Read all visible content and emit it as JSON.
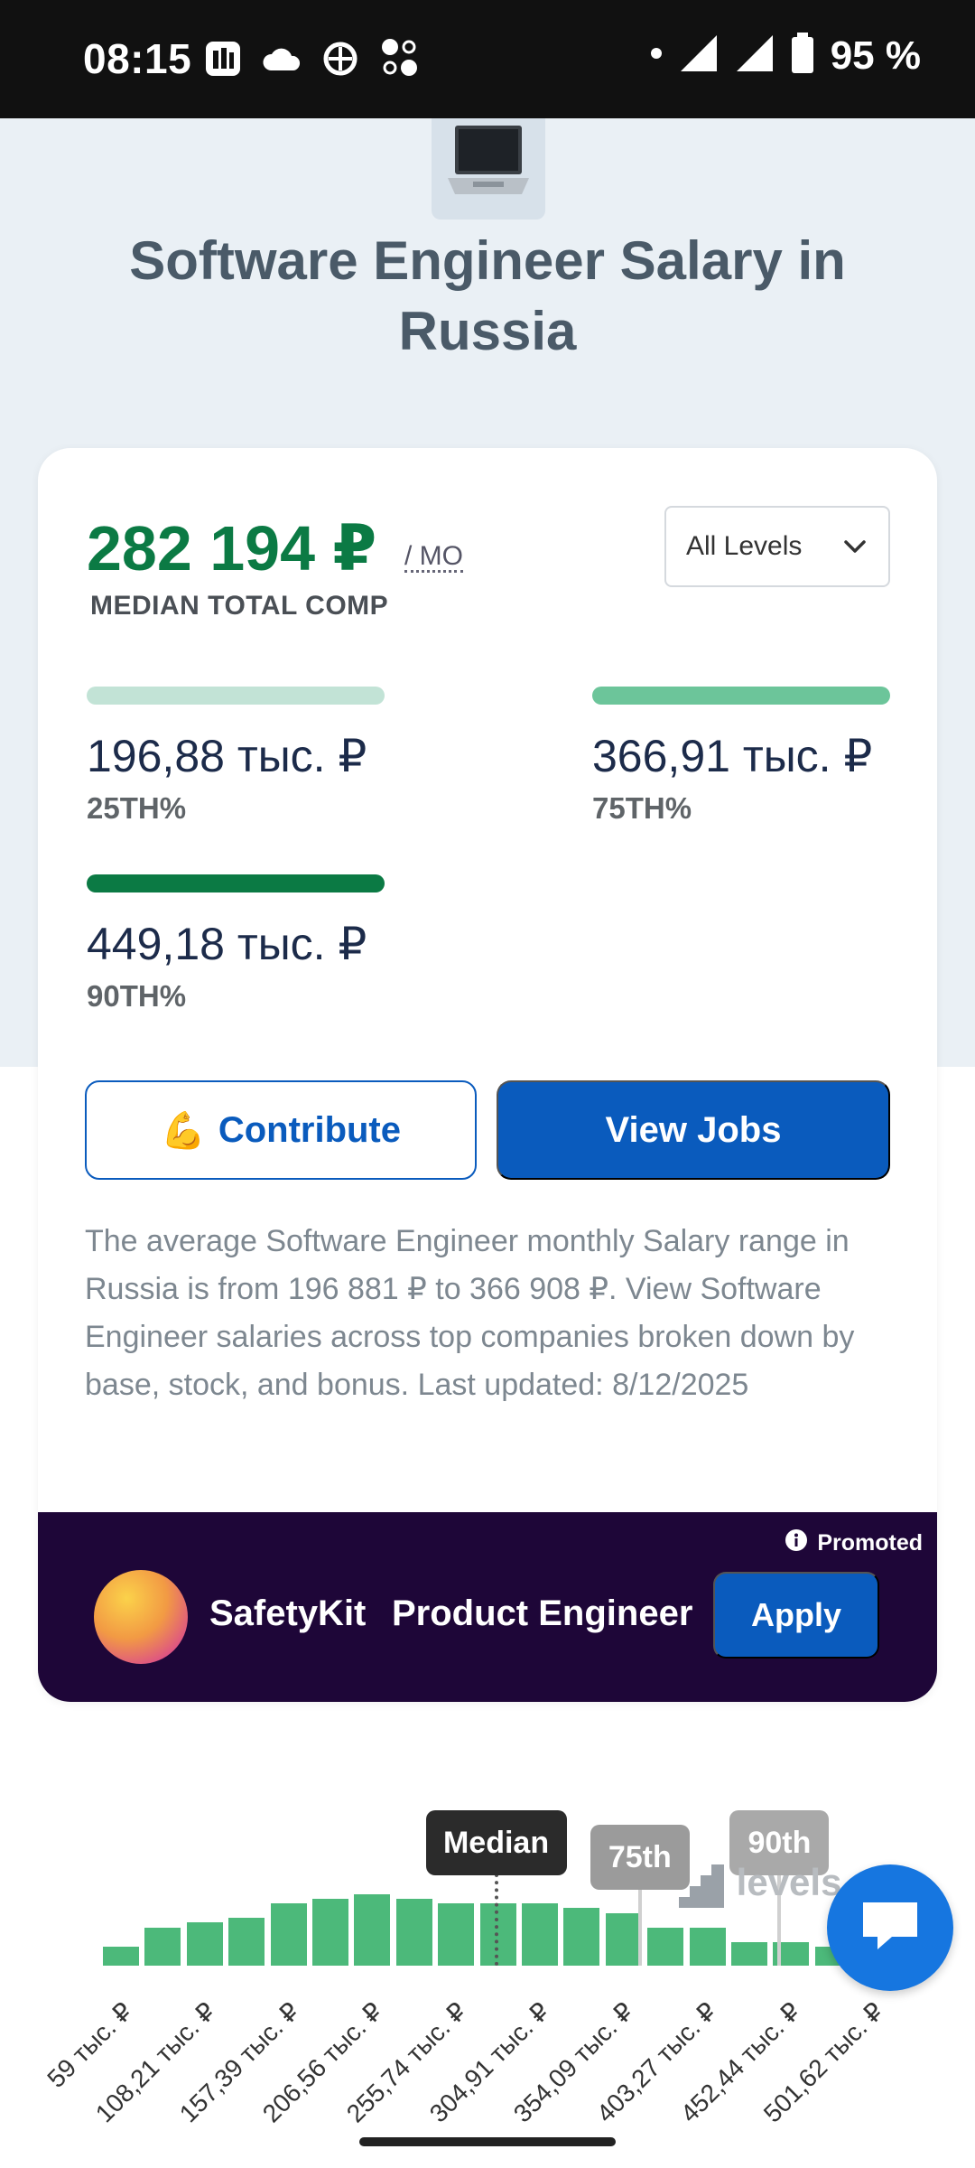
{
  "status_bar": {
    "time": "08:15",
    "battery": "95 %"
  },
  "hero": {
    "title": "Software Engineer Salary in Russia",
    "icon": "laptop-icon"
  },
  "summary": {
    "median_value": "282 194 ₽",
    "median_unit": "/ MO",
    "median_label": "MEDIAN TOTAL COMP",
    "level_select": "All Levels",
    "percentiles": [
      {
        "value": "196,88 тыс. ₽",
        "label": "25TH%",
        "color": "#c2e3d6"
      },
      {
        "value": "366,91 тыс. ₽",
        "label": "75TH%",
        "color": "#6cc59a"
      },
      {
        "value": "449,18 тыс. ₽",
        "label": "90TH%",
        "color": "#0b7a44"
      }
    ]
  },
  "actions": {
    "contribute_emoji": "💪",
    "contribute": "Contribute",
    "view_jobs": "View Jobs"
  },
  "description": "The average Software Engineer monthly Salary range in Russia is from 196 881 ₽ to 366 908 ₽. View Software Engineer salaries across top companies broken down by base, stock, and bonus. Last updated: 8/12/2025",
  "promo": {
    "tag": "Promoted",
    "company": "SafetyKit",
    "role": "Product Engineer",
    "apply": "Apply"
  },
  "histogram": {
    "markers": {
      "median": "Median",
      "p75": "75th",
      "p90": "90th"
    },
    "watermark": "levels",
    "bar_color": "#4cb97a"
  },
  "chart_data": {
    "type": "bar",
    "title": "",
    "xlabel": "",
    "ylabel": "",
    "tick_labels": [
      "59 тыс. ₽",
      "108,21 тыс. ₽",
      "157,39 тыс. ₽",
      "206,56 тыс. ₽",
      "255,74 тыс. ₽",
      "304,91 тыс. ₽",
      "354,09 тыс. ₽",
      "403,27 тыс. ₽",
      "452,44 тыс. ₽",
      "501,62 тыс. ₽"
    ],
    "values": [
      4,
      8,
      9,
      10,
      13,
      14,
      15,
      14,
      13,
      13,
      13,
      12,
      11,
      8,
      8,
      5,
      5,
      4
    ],
    "markers": [
      {
        "label": "Median",
        "value": 282194
      },
      {
        "label": "75th",
        "value": 366910
      },
      {
        "label": "90th",
        "value": 449180
      }
    ],
    "grid": false,
    "legend": "none"
  }
}
